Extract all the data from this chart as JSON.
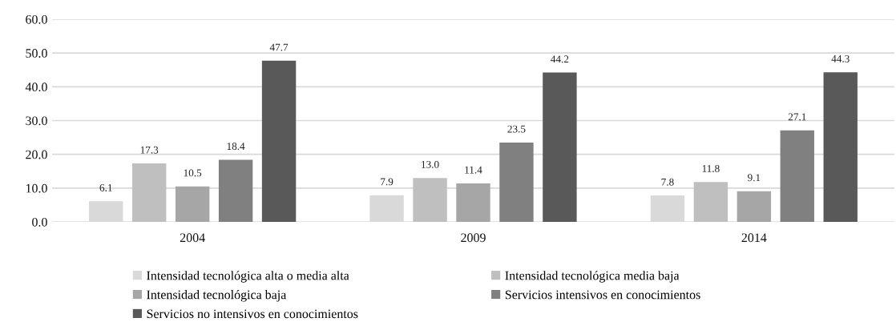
{
  "chart_data": {
    "type": "bar",
    "categories": [
      "2004",
      "2009",
      "2014"
    ],
    "series": [
      {
        "name": "Intensidad tecnológica alta o media alta",
        "color": "#d9d9d9",
        "values": [
          6.1,
          7.9,
          7.8
        ],
        "value_labels": [
          "6.1",
          "7.9",
          "7.8"
        ]
      },
      {
        "name": "Intensidad tecnológica media baja",
        "color": "#bfbfbf",
        "values": [
          17.3,
          13.0,
          11.8
        ],
        "value_labels": [
          "17.3",
          "13.0",
          "11.8"
        ]
      },
      {
        "name": "Intensidad tecnológica baja",
        "color": "#a6a6a6",
        "values": [
          10.5,
          11.4,
          9.1
        ],
        "value_labels": [
          "10.5",
          "11.4",
          "9.1"
        ]
      },
      {
        "name": "Servicios intensivos en conocimientos",
        "color": "#808080",
        "values": [
          18.4,
          23.5,
          27.1
        ],
        "value_labels": [
          "18.4",
          "23.5",
          "27.1"
        ]
      },
      {
        "name": "Servicios no intensivos en conocimientos",
        "color": "#595959",
        "values": [
          47.7,
          44.2,
          44.3
        ],
        "value_labels": [
          "47.7",
          "44.2",
          "44.3"
        ]
      }
    ],
    "ylim": [
      0,
      60
    ],
    "yticks": [
      {
        "value": 0,
        "label": "0.0"
      },
      {
        "value": 10,
        "label": "10.0"
      },
      {
        "value": 20,
        "label": "20.0"
      },
      {
        "value": 30,
        "label": "30.0"
      },
      {
        "value": 40,
        "label": "40.0"
      },
      {
        "value": 50,
        "label": "50.0"
      },
      {
        "value": 60,
        "label": "60.0"
      }
    ],
    "grid": "y",
    "legend": "bottom"
  }
}
